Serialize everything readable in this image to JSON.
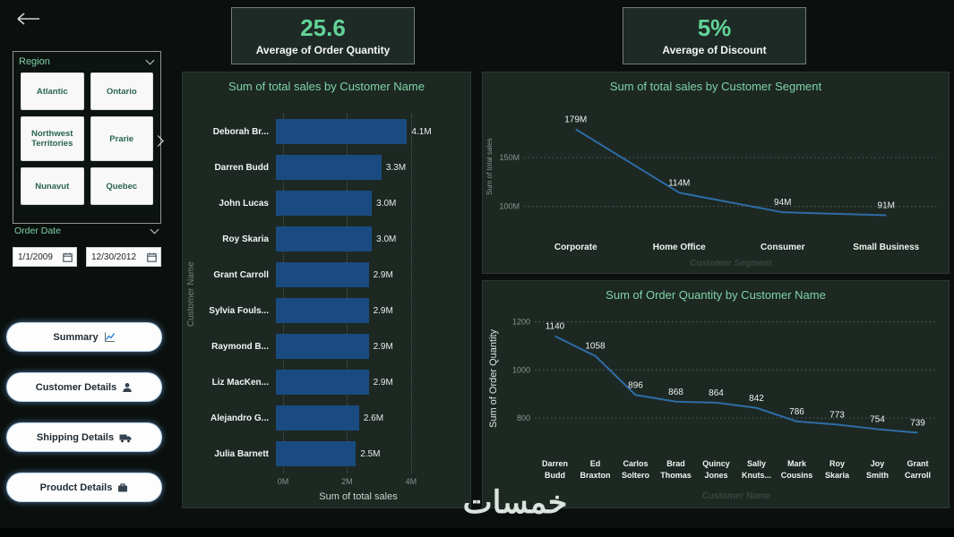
{
  "watermark": {
    "text": "خمسات"
  },
  "kpis": [
    {
      "value": "25.6",
      "label": "Average of Order Quantity"
    },
    {
      "value": "5%",
      "label": "Average of Discount"
    }
  ],
  "sidebar": {
    "region": {
      "title": "Region",
      "options": [
        "Atlantic",
        "Ontario",
        "Northwest Territories",
        "Prarie",
        "Nunavut",
        "Quebec"
      ]
    },
    "order_date": {
      "title": "Order Date",
      "start": "1/1/2009",
      "end": "12/30/2012"
    },
    "nav_buttons": [
      {
        "label": "Summary",
        "icon": "line-chart-icon",
        "name": "summary-button"
      },
      {
        "label": "Customer Details",
        "icon": "person-icon",
        "name": "customer-details-button"
      },
      {
        "label": "Shipping Details",
        "icon": "truck-icon",
        "name": "shipping-details-button"
      },
      {
        "label": "Proudct Details",
        "icon": "briefcase-icon",
        "name": "product-details-button"
      }
    ]
  },
  "icons": {
    "back": "arrow-left-icon",
    "region_collapse": "chevron-down-icon",
    "region_expand": "chevron-right-icon",
    "date_collapse": "chevron-down-icon",
    "date_picker": "calendar-icon"
  },
  "chart_data": [
    {
      "type": "bar",
      "orientation": "horizontal",
      "title": "Sum of total sales by Customer Name",
      "categories": [
        "Deborah Br...",
        "Darren Budd",
        "John Lucas",
        "Roy Skaria",
        "Grant Carroll",
        "Sylvia Fouls...",
        "Raymond B...",
        "Liz MacKen...",
        "Alejandro G...",
        "Julia Barnett"
      ],
      "values": [
        4.1,
        3.3,
        3.0,
        3.0,
        2.9,
        2.9,
        2.9,
        2.9,
        2.6,
        2.5
      ],
      "value_labels": [
        "4.1M",
        "3.3M",
        "3.0M",
        "3.0M",
        "2.9M",
        "2.9M",
        "2.9M",
        "2.9M",
        "2.6M",
        "2.5M"
      ],
      "x_ticks": [
        {
          "v": 0,
          "label": "0M"
        },
        {
          "v": 2,
          "label": "2M"
        },
        {
          "v": 4,
          "label": "4M"
        }
      ],
      "xlim": [
        0,
        4.2
      ],
      "xlabel": "Sum of total sales",
      "ylabel": "Customer Name",
      "bar_color": "#1a4b80",
      "grid": true
    },
    {
      "type": "line",
      "title": "Sum of total sales by Customer Segment",
      "categories": [
        "Corporate",
        "Home Office",
        "Consumer",
        "Small Business"
      ],
      "values": [
        179,
        114,
        94,
        91
      ],
      "value_labels": [
        "179M",
        "114M",
        "94M",
        "91M"
      ],
      "y_grid": [
        {
          "v": 150,
          "label": "150M"
        },
        {
          "v": 100,
          "label": "100M"
        }
      ],
      "ylim": [
        85,
        195
      ],
      "xlabel": "Customer Segment",
      "ylabel": "Sum of total sales",
      "line_color": "#2e6da6",
      "grid": true
    },
    {
      "type": "line",
      "title": "Sum of Order Quantity by Customer Name",
      "categories": [
        "Darren Budd",
        "Ed Braxton",
        "Carlos Soltero",
        "Brad Thomas",
        "Quincy Jones",
        "Sally Knuts...",
        "Mark Cousins",
        "Roy Skaria",
        "Joy Smith",
        "Grant Carroll"
      ],
      "values": [
        1140,
        1058,
        896,
        868,
        864,
        842,
        786,
        773,
        754,
        739
      ],
      "value_labels": [
        "1140",
        "1058",
        "896",
        "868",
        "864",
        "842",
        "786",
        "773",
        "754",
        "739"
      ],
      "y_grid": [
        {
          "v": 1200,
          "label": "1200"
        },
        {
          "v": 1000,
          "label": "1000"
        },
        {
          "v": 800,
          "label": "800"
        }
      ],
      "ylim": [
        700,
        1250
      ],
      "xlabel": "Customer Name",
      "ylabel": "Sum of Order Quantity",
      "line_color": "#2e6da6",
      "grid": true
    }
  ]
}
